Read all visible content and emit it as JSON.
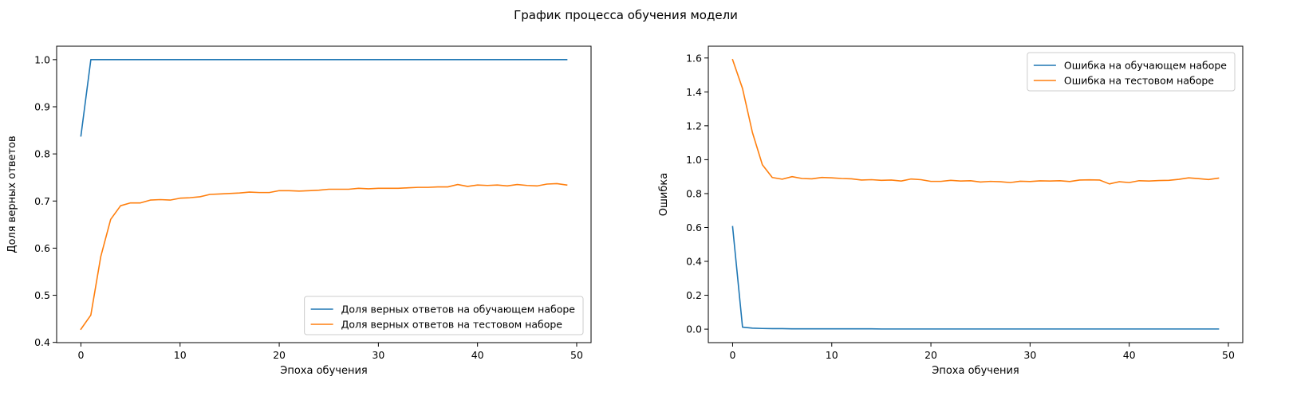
{
  "figure": {
    "suptitle": "График процесса обучения модели"
  },
  "chart_data": [
    {
      "type": "line",
      "title": "",
      "xlabel": "Эпоха обучения",
      "ylabel": "Доля верных ответов",
      "xlim": [
        -2.45,
        51.45
      ],
      "ylim": [
        0.3995,
        1.0285
      ],
      "xticks": [
        0,
        10,
        20,
        30,
        40,
        50
      ],
      "yticks": [
        0.4,
        0.5,
        0.6,
        0.7,
        0.8,
        0.9,
        1.0
      ],
      "grid": false,
      "legend_position": "lower right",
      "series": [
        {
          "name": "Доля верных ответов на обучающем наборе",
          "color": "#1f77b4",
          "x": [
            0,
            1,
            2,
            3,
            4,
            5,
            6,
            7,
            8,
            9,
            10,
            11,
            12,
            13,
            14,
            15,
            16,
            17,
            18,
            19,
            20,
            21,
            22,
            23,
            24,
            25,
            26,
            27,
            28,
            29,
            30,
            31,
            32,
            33,
            34,
            35,
            36,
            37,
            38,
            39,
            40,
            41,
            42,
            43,
            44,
            45,
            46,
            47,
            48,
            49
          ],
          "values": [
            0.838,
            1.0,
            1.0,
            1.0,
            1.0,
            1.0,
            1.0,
            1.0,
            1.0,
            1.0,
            1.0,
            1.0,
            1.0,
            1.0,
            1.0,
            1.0,
            1.0,
            1.0,
            1.0,
            1.0,
            1.0,
            1.0,
            1.0,
            1.0,
            1.0,
            1.0,
            1.0,
            1.0,
            1.0,
            1.0,
            1.0,
            1.0,
            1.0,
            1.0,
            1.0,
            1.0,
            1.0,
            1.0,
            1.0,
            1.0,
            1.0,
            1.0,
            1.0,
            1.0,
            1.0,
            1.0,
            1.0,
            1.0,
            1.0,
            1.0
          ]
        },
        {
          "name": "Доля верных ответов на тестовом наборе",
          "color": "#ff7f0e",
          "x": [
            0,
            1,
            2,
            3,
            4,
            5,
            6,
            7,
            8,
            9,
            10,
            11,
            12,
            13,
            14,
            15,
            16,
            17,
            18,
            19,
            20,
            21,
            22,
            23,
            24,
            25,
            26,
            27,
            28,
            29,
            30,
            31,
            32,
            33,
            34,
            35,
            36,
            37,
            38,
            39,
            40,
            41,
            42,
            43,
            44,
            45,
            46,
            47,
            48,
            49
          ],
          "values": [
            0.428,
            0.458,
            0.582,
            0.661,
            0.69,
            0.696,
            0.696,
            0.702,
            0.703,
            0.702,
            0.706,
            0.707,
            0.709,
            0.714,
            0.715,
            0.716,
            0.717,
            0.719,
            0.718,
            0.718,
            0.722,
            0.722,
            0.721,
            0.722,
            0.723,
            0.725,
            0.725,
            0.725,
            0.727,
            0.726,
            0.727,
            0.727,
            0.727,
            0.728,
            0.729,
            0.729,
            0.73,
            0.73,
            0.735,
            0.731,
            0.734,
            0.733,
            0.734,
            0.732,
            0.735,
            0.733,
            0.732,
            0.736,
            0.737,
            0.734
          ]
        }
      ]
    },
    {
      "type": "line",
      "title": "",
      "xlabel": "Эпоха обучения",
      "ylabel": "Ошибка",
      "xlim": [
        -2.45,
        51.45
      ],
      "ylim": [
        -0.0795,
        1.6695
      ],
      "xticks": [
        0,
        10,
        20,
        30,
        40,
        50
      ],
      "yticks": [
        0.0,
        0.2,
        0.4,
        0.6,
        0.8,
        1.0,
        1.2,
        1.4,
        1.6
      ],
      "grid": false,
      "legend_position": "upper right",
      "series": [
        {
          "name": "Ошибка на обучающем наборе",
          "color": "#1f77b4",
          "x": [
            0,
            1,
            2,
            3,
            4,
            5,
            6,
            7,
            8,
            9,
            10,
            11,
            12,
            13,
            14,
            15,
            16,
            17,
            18,
            19,
            20,
            21,
            22,
            23,
            24,
            25,
            26,
            27,
            28,
            29,
            30,
            31,
            32,
            33,
            34,
            35,
            36,
            37,
            38,
            39,
            40,
            41,
            42,
            43,
            44,
            45,
            46,
            47,
            48,
            49
          ],
          "values": [
            0.605,
            0.012,
            0.006,
            0.004,
            0.003,
            0.003,
            0.002,
            0.002,
            0.002,
            0.002,
            0.002,
            0.002,
            0.002,
            0.002,
            0.002,
            0.001,
            0.001,
            0.001,
            0.001,
            0.001,
            0.001,
            0.001,
            0.001,
            0.001,
            0.001,
            0.001,
            0.001,
            0.001,
            0.001,
            0.001,
            0.001,
            0.001,
            0.001,
            0.001,
            0.001,
            0.001,
            0.001,
            0.001,
            0.001,
            0.001,
            0.001,
            0.001,
            0.001,
            0.001,
            0.001,
            0.001,
            0.001,
            0.001,
            0.001,
            0.001
          ]
        },
        {
          "name": "Ошибка на тестовом наборе",
          "color": "#ff7f0e",
          "x": [
            0,
            1,
            2,
            3,
            4,
            5,
            6,
            7,
            8,
            9,
            10,
            11,
            12,
            13,
            14,
            15,
            16,
            17,
            18,
            19,
            20,
            21,
            22,
            23,
            24,
            25,
            26,
            27,
            28,
            29,
            30,
            31,
            32,
            33,
            34,
            35,
            36,
            37,
            38,
            39,
            40,
            41,
            42,
            43,
            44,
            45,
            46,
            47,
            48,
            49
          ],
          "values": [
            1.59,
            1.42,
            1.16,
            0.97,
            0.895,
            0.885,
            0.9,
            0.889,
            0.887,
            0.895,
            0.893,
            0.889,
            0.887,
            0.88,
            0.882,
            0.878,
            0.88,
            0.874,
            0.886,
            0.882,
            0.872,
            0.872,
            0.878,
            0.874,
            0.876,
            0.868,
            0.872,
            0.87,
            0.865,
            0.873,
            0.871,
            0.875,
            0.874,
            0.876,
            0.871,
            0.88,
            0.881,
            0.88,
            0.857,
            0.87,
            0.865,
            0.876,
            0.874,
            0.877,
            0.878,
            0.884,
            0.893,
            0.888,
            0.883,
            0.891
          ]
        }
      ]
    }
  ]
}
